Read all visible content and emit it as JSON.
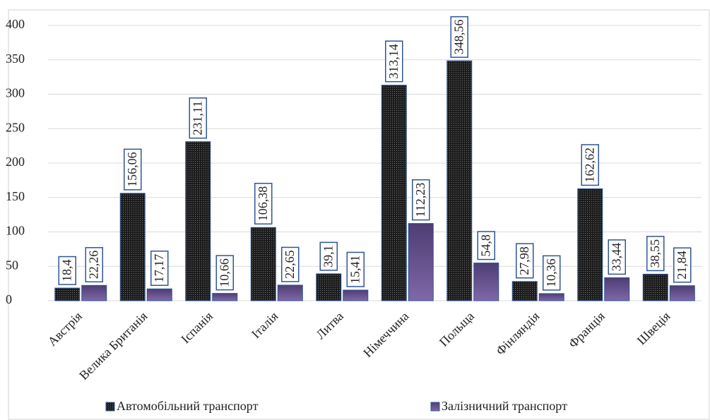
{
  "chart_data": {
    "type": "bar",
    "categories": [
      "Австрія",
      "Велика Британія",
      "Іспанія",
      "Італія",
      "Литва",
      "Німеччина",
      "Польща",
      "Фінляндія",
      "Франція",
      "Швеція"
    ],
    "series": [
      {
        "name": "Автомобільний транспорт",
        "color": "#1c1c1c",
        "values": [
          18.4,
          156.06,
          231.11,
          106.38,
          39.1,
          313.14,
          348.56,
          27.98,
          162.62,
          38.55
        ],
        "value_labels": [
          "18,4",
          "156,06",
          "231,11",
          "106,38",
          "39,1",
          "313,14",
          "348,56",
          "27,98",
          "162,62",
          "38,55"
        ]
      },
      {
        "name": "Залізничний транспорт",
        "color": "#5e4a86",
        "values": [
          22.26,
          17.17,
          10.66,
          22.65,
          15.41,
          112.23,
          54.8,
          10.36,
          33.44,
          21.84
        ],
        "value_labels": [
          "22,26",
          "17,17",
          "10,66",
          "22,65",
          "15,41",
          "112,23",
          "54,8",
          "10,36",
          "33,44",
          "21,84"
        ]
      }
    ],
    "ylim": [
      0,
      400
    ],
    "yticks": [
      0,
      50,
      100,
      150,
      200,
      250,
      300,
      350,
      400
    ],
    "grid": true,
    "legend": "bottom"
  }
}
